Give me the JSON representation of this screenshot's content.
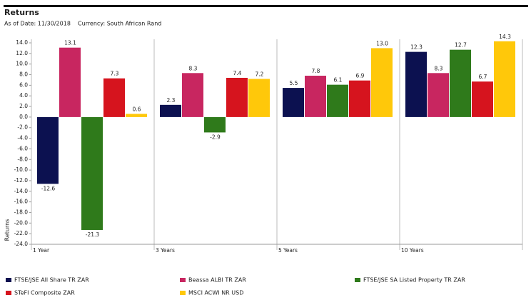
{
  "chart_data": {
    "type": "bar",
    "title": "Returns",
    "as_of_date": "As of Date: 11/30/2018",
    "currency": "Currency: South African Rand",
    "y_label": "Returns",
    "categories": [
      "1 Year",
      "3 Years",
      "5 Years",
      "10 Years"
    ],
    "series": [
      {
        "name": "FTSE/JSE All Share TR ZAR",
        "color": "#0c1150",
        "values": [
          -12.6,
          2.3,
          5.5,
          12.3
        ]
      },
      {
        "name": "Beassa ALBI TR ZAR",
        "color": "#c82660",
        "values": [
          13.1,
          8.3,
          7.8,
          8.3
        ]
      },
      {
        "name": "FTSE/JSE SA Listed Property TR ZAR",
        "color": "#2f7a1b",
        "values": [
          -21.3,
          -2.9,
          6.1,
          12.7
        ]
      },
      {
        "name": "STeFI Composite ZAR",
        "color": "#d6141e",
        "values": [
          7.3,
          7.4,
          6.9,
          6.7
        ]
      },
      {
        "name": "MSCI ACWI NR USD",
        "color": "#ffc80a",
        "values": [
          0.6,
          7.2,
          13,
          14.3
        ],
        "value_labels": [
          "0.6",
          "7.2",
          "13.0",
          "14.3"
        ]
      }
    ],
    "ylim": [
      -24,
      14
    ],
    "yticks": [
      {
        "value": 14,
        "label": "14.0"
      },
      {
        "value": 12,
        "label": "12.0"
      },
      {
        "value": 10,
        "label": "10.0"
      },
      {
        "value": 8,
        "label": "8.0"
      },
      {
        "value": 6,
        "label": "6.0"
      },
      {
        "value": 4,
        "label": "4.0"
      },
      {
        "value": 2,
        "label": "2.0"
      },
      {
        "value": 0,
        "label": "0.0"
      },
      {
        "value": -2,
        "label": "-2.0"
      },
      {
        "value": -4,
        "label": "-4.0"
      },
      {
        "value": -6,
        "label": "-6.0"
      },
      {
        "value": -8,
        "label": "-8.0"
      },
      {
        "value": -10,
        "label": "-10.0"
      },
      {
        "value": -12,
        "label": "-12.0"
      },
      {
        "value": -14,
        "label": "-14.0"
      },
      {
        "value": -16,
        "label": "-16.0"
      },
      {
        "value": -18,
        "label": "-18.0"
      },
      {
        "value": -20,
        "label": "-20.0"
      },
      {
        "value": -22,
        "label": "-22.0"
      },
      {
        "value": -24,
        "label": "-24.0"
      }
    ],
    "grid": false
  }
}
